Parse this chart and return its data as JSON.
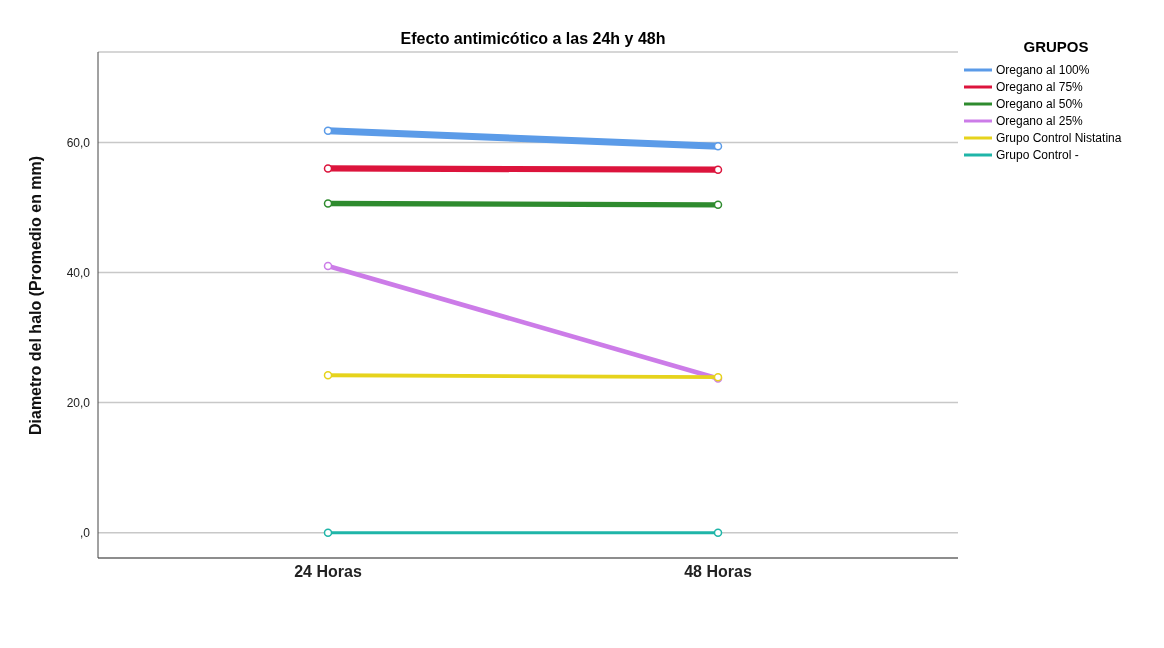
{
  "chart_data": {
    "type": "line",
    "title": "Efecto antimicótico a las 24h y 48h",
    "ylabel": "Diametro del halo (Promedio en mm)",
    "legend_title": "GRUPOS",
    "categories": [
      "24 Horas",
      "48 Horas"
    ],
    "series": [
      {
        "name": "Oregano al 100%",
        "color": "#5b9be8",
        "values": [
          61.8,
          59.4
        ]
      },
      {
        "name": "Oregano al 75%",
        "color": "#dc143c",
        "values": [
          56.0,
          55.8
        ]
      },
      {
        "name": "Oregano al 50%",
        "color": "#2e8b2e",
        "values": [
          50.6,
          50.4
        ]
      },
      {
        "name": "Oregano al 25%",
        "color": "#cc7ce8",
        "values": [
          41.0,
          23.7
        ]
      },
      {
        "name": "Grupo Control Nistatina",
        "color": "#e6d31c",
        "values": [
          24.2,
          23.9
        ]
      },
      {
        "name": "Grupo Control -",
        "color": "#1fb5a8",
        "values": [
          0,
          0
        ]
      }
    ],
    "ylim": [
      -3.9,
      73.9
    ],
    "yticks": [
      {
        "value": 0,
        "label": ",0"
      },
      {
        "value": 20,
        "label": "20,0"
      },
      {
        "value": 40,
        "label": "40,0"
      },
      {
        "value": 60,
        "label": "60,0"
      }
    ],
    "grid": "y",
    "legend": "top right",
    "marker": "circle",
    "line_style": "solid"
  }
}
